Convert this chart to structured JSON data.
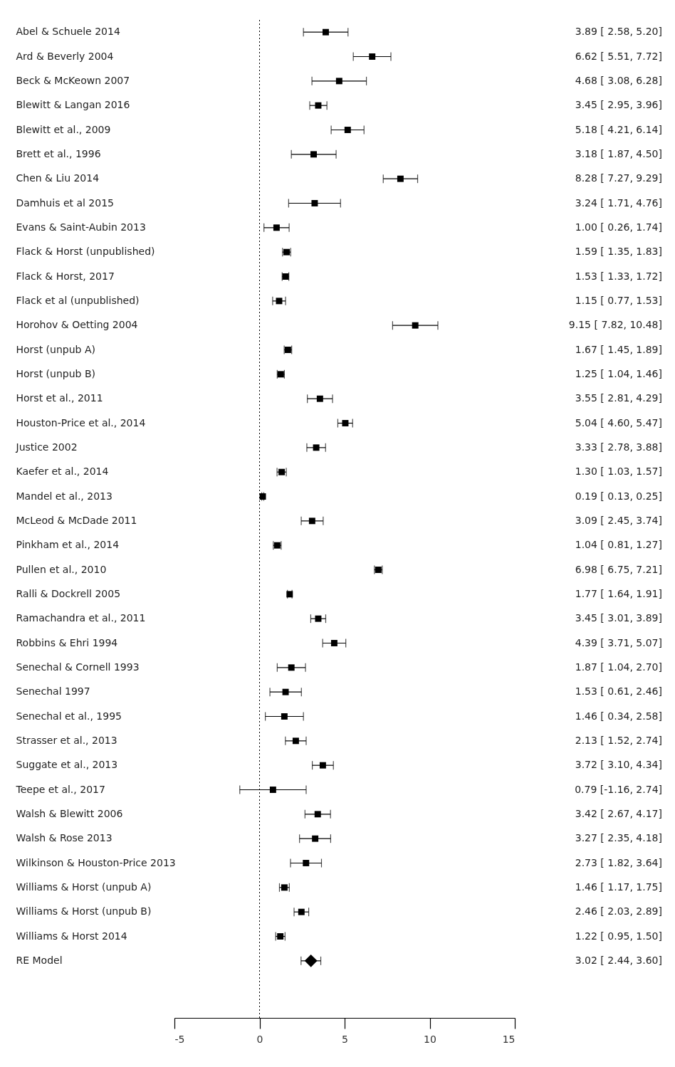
{
  "chart_data": {
    "type": "scatter",
    "orientation": "horizontal",
    "grid": false,
    "categories": [
      "Abel & Schuele 2014",
      "Ard & Beverly 2004",
      "Beck & McKeown 2007",
      "Blewitt & Langan 2016",
      "Blewitt et al., 2009",
      "Brett et al., 1996",
      "Chen & Liu 2014",
      "Damhuis et al 2015",
      "Evans & Saint-Aubin 2013",
      "Flack & Horst (unpublished)",
      "Flack & Horst, 2017",
      "Flack et al (unpublished)",
      "Horohov & Oetting 2004",
      "Horst (unpub A)",
      "Horst (unpub B)",
      "Horst et al., 2011",
      "Houston-Price et al., 2014",
      "Justice 2002",
      "Kaefer et al., 2014",
      "Mandel et al., 2013",
      "McLeod & McDade 2011",
      "Pinkham et al., 2014",
      "Pullen et al., 2010",
      "Ralli & Dockrell 2005",
      "Ramachandra et al., 2011",
      "Robbins & Ehri 1994",
      "Senechal & Cornell 1993",
      "Senechal 1997",
      "Senechal et al., 1995",
      "Strasser et al., 2013",
      "Suggate et al., 2013",
      "Teepe et al., 2017",
      "Walsh & Blewitt 2006",
      "Walsh & Rose 2013",
      "Wilkinson & Houston-Price 2013",
      "Williams & Horst (unpub A)",
      "Williams & Horst (unpub B)",
      "Williams & Horst 2014",
      "RE Model"
    ],
    "series": [
      {
        "color": "#000000",
        "marker": "square",
        "values": [
          3.89,
          6.62,
          4.68,
          3.45,
          5.18,
          3.18,
          8.28,
          3.24,
          1.0,
          1.59,
          1.53,
          1.15,
          9.15,
          1.67,
          1.25,
          3.55,
          5.04,
          3.33,
          1.3,
          0.19,
          3.09,
          1.04,
          6.98,
          1.77,
          3.45,
          4.39,
          1.87,
          1.53,
          1.46,
          2.13,
          3.72,
          0.79,
          3.42,
          3.27,
          2.73,
          1.46,
          2.46,
          1.22,
          null
        ],
        "errors": [
          [
            2.58,
            5.2
          ],
          [
            5.51,
            7.72
          ],
          [
            3.08,
            6.28
          ],
          [
            2.95,
            3.96
          ],
          [
            4.21,
            6.14
          ],
          [
            1.87,
            4.5
          ],
          [
            7.27,
            9.29
          ],
          [
            1.71,
            4.76
          ],
          [
            0.26,
            1.74
          ],
          [
            1.35,
            1.83
          ],
          [
            1.33,
            1.72
          ],
          [
            0.77,
            1.53
          ],
          [
            7.82,
            10.48
          ],
          [
            1.45,
            1.89
          ],
          [
            1.04,
            1.46
          ],
          [
            2.81,
            4.29
          ],
          [
            4.6,
            5.47
          ],
          [
            2.78,
            3.88
          ],
          [
            1.03,
            1.57
          ],
          [
            0.13,
            0.25
          ],
          [
            2.45,
            3.74
          ],
          [
            0.81,
            1.27
          ],
          [
            6.75,
            7.21
          ],
          [
            1.64,
            1.91
          ],
          [
            3.01,
            3.89
          ],
          [
            3.71,
            5.07
          ],
          [
            1.04,
            2.7
          ],
          [
            0.61,
            2.46
          ],
          [
            0.34,
            2.58
          ],
          [
            1.52,
            2.74
          ],
          [
            3.1,
            4.34
          ],
          [
            -1.16,
            2.74
          ],
          [
            2.67,
            4.17
          ],
          [
            2.35,
            4.18
          ],
          [
            1.82,
            3.64
          ],
          [
            1.17,
            1.75
          ],
          [
            2.03,
            2.89
          ],
          [
            0.95,
            1.5
          ],
          null
        ]
      },
      {
        "color": "#000000",
        "marker": "diamond",
        "values": [
          null,
          null,
          null,
          null,
          null,
          null,
          null,
          null,
          null,
          null,
          null,
          null,
          null,
          null,
          null,
          null,
          null,
          null,
          null,
          null,
          null,
          null,
          null,
          null,
          null,
          null,
          null,
          null,
          null,
          null,
          null,
          null,
          null,
          null,
          null,
          null,
          null,
          null,
          3.02
        ],
        "errors": [
          null,
          null,
          null,
          null,
          null,
          null,
          null,
          null,
          null,
          null,
          null,
          null,
          null,
          null,
          null,
          null,
          null,
          null,
          null,
          null,
          null,
          null,
          null,
          null,
          null,
          null,
          null,
          null,
          null,
          null,
          null,
          null,
          null,
          null,
          null,
          null,
          null,
          null,
          [
            2.44,
            3.6
          ]
        ]
      }
    ],
    "value_labels": [
      "3.89 [ 2.58, 5.20]",
      "6.62 [ 5.51, 7.72]",
      "4.68 [ 3.08, 6.28]",
      "3.45 [ 2.95, 3.96]",
      "5.18 [ 4.21, 6.14]",
      "3.18 [ 1.87, 4.50]",
      "8.28 [ 7.27, 9.29]",
      "3.24 [ 1.71, 4.76]",
      "1.00 [ 0.26, 1.74]",
      "1.59 [ 1.35, 1.83]",
      "1.53 [ 1.33, 1.72]",
      "1.15 [ 0.77, 1.53]",
      "9.15 [ 7.82, 10.48]",
      "1.67 [ 1.45, 1.89]",
      "1.25 [ 1.04, 1.46]",
      "3.55 [ 2.81, 4.29]",
      "5.04 [ 4.60, 5.47]",
      "3.33 [ 2.78, 3.88]",
      "1.30 [ 1.03, 1.57]",
      "0.19 [ 0.13, 0.25]",
      "3.09 [ 2.45, 3.74]",
      "1.04 [ 0.81, 1.27]",
      "6.98 [ 6.75, 7.21]",
      "1.77 [ 1.64, 1.91]",
      "3.45 [ 3.01, 3.89]",
      "4.39 [ 3.71, 5.07]",
      "1.87 [ 1.04, 2.70]",
      "1.53 [ 0.61, 2.46]",
      "1.46 [ 0.34, 2.58]",
      "2.13 [ 1.52, 2.74]",
      "3.72 [ 3.10, 4.34]",
      "0.79 [-1.16, 2.74]",
      "3.42 [ 2.67, 4.17]",
      "3.27 [ 2.35, 4.18]",
      "2.73 [ 1.82, 3.64]",
      "1.46 [ 1.17, 1.75]",
      "2.46 [ 2.03, 2.89]",
      "1.22 [ 0.95, 1.50]",
      "3.02 [ 2.44, 3.60]"
    ],
    "xlim": [
      -5,
      15
    ],
    "xticks": [
      -5,
      0,
      5,
      10,
      15
    ],
    "ref_lines": [
      {
        "axis": "x",
        "value": 0,
        "line_style": "dotted",
        "color": "#000000"
      }
    ]
  }
}
